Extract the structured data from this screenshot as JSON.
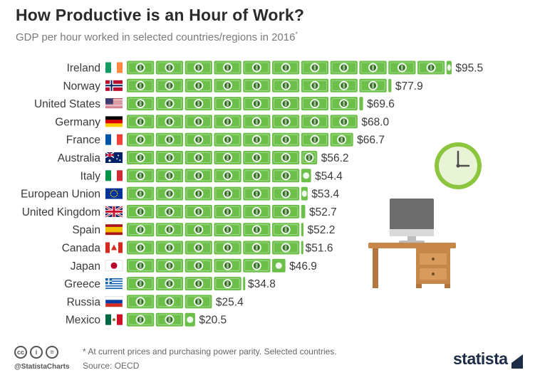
{
  "title": "How Productive is an Hour of Work?",
  "subtitle": "GDP per hour worked in selected countries/regions in 2016",
  "subtitle_mark": "*",
  "chart_data": {
    "type": "bar",
    "orientation": "horizontal",
    "categories": [
      "Ireland",
      "Norway",
      "United States",
      "Germany",
      "France",
      "Australia",
      "Italy",
      "European Union",
      "United Kingdom",
      "Spain",
      "Canada",
      "Japan",
      "Greece",
      "Russia",
      "Mexico"
    ],
    "values": [
      95.5,
      77.9,
      69.6,
      68.0,
      66.7,
      56.2,
      54.4,
      53.4,
      52.7,
      52.2,
      51.6,
      46.9,
      34.8,
      25.4,
      20.5
    ],
    "value_labels": [
      "$95.5",
      "$77.9",
      "$69.6",
      "$68.0",
      "$66.7",
      "$56.2",
      "$54.4",
      "$53.4",
      "$52.7",
      "$52.2",
      "$51.6",
      "$46.9",
      "$34.8",
      "$25.4",
      "$20.5"
    ],
    "flags": [
      "ireland-flag",
      "norway-flag",
      "united-states-flag",
      "germany-flag",
      "france-flag",
      "australia-flag",
      "italy-flag",
      "european-union-flag",
      "united-kingdom-flag",
      "spain-flag",
      "canada-flag",
      "japan-flag",
      "greece-flag",
      "russia-flag",
      "mexico-flag"
    ],
    "unit_value": 8.5,
    "bar_color": "#6cc04a",
    "note_color": "#2e6b1d",
    "xlim": [
      0,
      100
    ]
  },
  "footer": {
    "note": "* At current prices and purchasing power parity. Selected countries.",
    "source": "Source: OECD",
    "handle": "@StatistaCharts",
    "brand": "statista"
  },
  "cc_icons": [
    "cc",
    "i",
    "="
  ],
  "colors": {
    "title": "#2b2b2b",
    "clock": "#8cc63f",
    "desk": "#c8874a",
    "monitor": "#6d6d6d",
    "brand": "#1c2d45"
  }
}
